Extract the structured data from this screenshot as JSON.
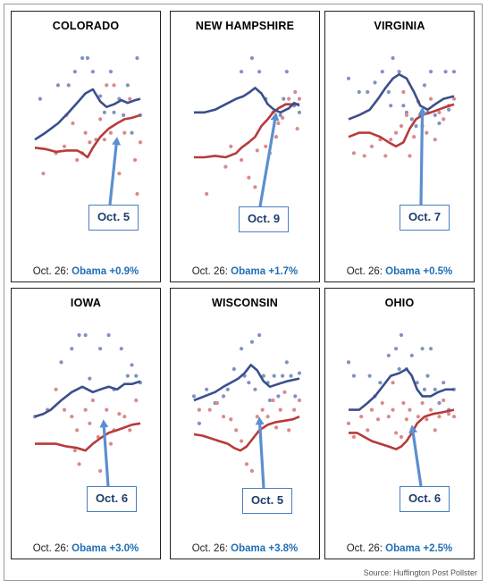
{
  "source": "Source:  Huffington Post Pollster",
  "colors": {
    "obama": "#3b4f8c",
    "romney": "#b83a3a",
    "obama_dot": "#7f93bf",
    "romney_dot": "#d98a8a",
    "arrow": "#5b8fd0",
    "result": "#1f6fb4"
  },
  "chart_data": [
    {
      "type": "scatter",
      "title": "COLORADO",
      "callout": "Oct. 5",
      "footer_prefix": "Oct. 26: ",
      "footer_result": "Obama +0.9%",
      "obama_line": [
        0.0,
        0.6,
        0.1,
        0.55,
        0.22,
        0.48,
        0.32,
        0.4,
        0.4,
        0.33,
        0.48,
        0.26,
        0.55,
        0.23,
        0.62,
        0.32,
        0.68,
        0.36,
        0.75,
        0.34,
        0.82,
        0.31,
        0.88,
        0.33,
        0.95,
        0.31,
        1.0,
        0.3
      ],
      "romney_line": [
        0.0,
        0.66,
        0.1,
        0.67,
        0.2,
        0.69,
        0.3,
        0.68,
        0.4,
        0.68,
        0.45,
        0.7,
        0.5,
        0.73,
        0.55,
        0.66,
        0.62,
        0.58,
        0.7,
        0.52,
        0.78,
        0.48,
        0.85,
        0.45,
        0.92,
        0.44,
        1.0,
        0.42
      ],
      "obama_dots": [
        0.05,
        0.3,
        0.22,
        0.2,
        0.32,
        0.2,
        0.38,
        0.1,
        0.45,
        0.0,
        0.5,
        0.0,
        0.55,
        0.1,
        0.62,
        0.28,
        0.66,
        0.4,
        0.72,
        0.1,
        0.75,
        0.4,
        0.8,
        0.3,
        0.84,
        0.42,
        0.88,
        0.2,
        0.92,
        0.55,
        0.97,
        0.0,
        1.0,
        0.42
      ],
      "romney_dots": [
        0.08,
        0.85,
        0.2,
        0.7,
        0.28,
        0.65,
        0.3,
        0.42,
        0.36,
        0.48,
        0.4,
        0.75,
        0.45,
        0.7,
        0.48,
        0.55,
        0.52,
        0.62,
        0.58,
        0.6,
        0.62,
        0.45,
        0.66,
        0.6,
        0.68,
        0.2,
        0.72,
        0.55,
        0.75,
        0.2,
        0.8,
        0.85,
        0.85,
        0.55,
        0.9,
        0.3,
        0.95,
        0.75,
        0.97,
        1.0,
        1.0,
        0.62
      ]
    },
    {
      "type": "scatter",
      "title": "NEW HAMPSHIRE",
      "callout": "Oct. 9",
      "footer_prefix": "Oct. 26: ",
      "footer_result": "Obama +1.7%",
      "obama_line": [
        0.0,
        0.4,
        0.1,
        0.4,
        0.2,
        0.38,
        0.3,
        0.34,
        0.4,
        0.3,
        0.47,
        0.28,
        0.53,
        0.25,
        0.58,
        0.22,
        0.64,
        0.26,
        0.7,
        0.34,
        0.76,
        0.38,
        0.82,
        0.4,
        0.9,
        0.37,
        0.95,
        0.33,
        1.0,
        0.35
      ],
      "romney_line": [
        0.0,
        0.73,
        0.1,
        0.73,
        0.2,
        0.72,
        0.3,
        0.73,
        0.4,
        0.7,
        0.45,
        0.66,
        0.52,
        0.62,
        0.58,
        0.58,
        0.64,
        0.5,
        0.7,
        0.45,
        0.75,
        0.4,
        0.8,
        0.37,
        0.87,
        0.34,
        1.0,
        0.34
      ],
      "obama_dots": [
        0.45,
        0.1,
        0.55,
        0.0,
        0.62,
        0.1,
        0.68,
        0.3,
        0.75,
        0.4,
        0.82,
        0.42,
        0.85,
        0.3,
        0.88,
        0.1,
        0.95,
        0.35,
        1.0,
        0.4
      ],
      "romney_dots": [
        0.3,
        0.8,
        0.35,
        0.65,
        0.45,
        0.75,
        0.52,
        0.88,
        0.58,
        0.95,
        0.6,
        0.68,
        0.68,
        0.65,
        0.72,
        0.7,
        0.78,
        0.58,
        0.8,
        0.48,
        0.84,
        0.44,
        0.9,
        0.3,
        0.96,
        0.25,
        0.98,
        0.52,
        1.0,
        0.3,
        0.12,
        1.0
      ]
    },
    {
      "type": "scatter",
      "title": "VIRGINIA",
      "callout": "Oct. 7",
      "footer_prefix": "Oct. 26: ",
      "footer_result": "Obama +0.5%",
      "obama_line": [
        0.0,
        0.45,
        0.1,
        0.42,
        0.2,
        0.38,
        0.28,
        0.3,
        0.35,
        0.22,
        0.42,
        0.15,
        0.48,
        0.12,
        0.55,
        0.15,
        0.62,
        0.25,
        0.68,
        0.35,
        0.75,
        0.38,
        0.82,
        0.34,
        0.9,
        0.3,
        1.0,
        0.28
      ],
      "romney_line": [
        0.0,
        0.58,
        0.1,
        0.55,
        0.2,
        0.55,
        0.3,
        0.58,
        0.38,
        0.62,
        0.45,
        0.65,
        0.52,
        0.62,
        0.58,
        0.52,
        0.64,
        0.45,
        0.7,
        0.42,
        0.78,
        0.4,
        0.85,
        0.38,
        0.92,
        0.36,
        1.0,
        0.34
      ],
      "obama_dots": [
        0.0,
        0.15,
        0.1,
        0.25,
        0.18,
        0.25,
        0.25,
        0.18,
        0.32,
        0.1,
        0.38,
        0.25,
        0.4,
        0.35,
        0.42,
        0.0,
        0.48,
        0.1,
        0.52,
        0.35,
        0.55,
        0.4,
        0.6,
        0.45,
        0.64,
        0.5,
        0.68,
        0.42,
        0.72,
        0.2,
        0.75,
        0.4,
        0.78,
        0.1,
        0.82,
        0.42,
        0.86,
        0.48,
        0.92,
        0.1,
        0.95,
        0.38,
        1.0,
        0.1
      ],
      "romney_dots": [
        0.05,
        0.7,
        0.15,
        0.72,
        0.22,
        0.65,
        0.3,
        0.6,
        0.35,
        0.72,
        0.4,
        0.6,
        0.45,
        0.55,
        0.5,
        0.5,
        0.55,
        0.42,
        0.58,
        0.72,
        0.62,
        0.58,
        0.66,
        0.32,
        0.7,
        0.5,
        0.74,
        0.55,
        0.78,
        0.3,
        0.82,
        0.6,
        0.86,
        0.4,
        0.9,
        0.45,
        0.95,
        0.35,
        1.0,
        0.3,
        0.52,
        0.25
      ]
    },
    {
      "type": "scatter",
      "title": "IOWA",
      "callout": "Oct. 6",
      "footer_prefix": "Oct. 26: ",
      "footer_result": "Obama +3.0%",
      "obama_line": [
        0.0,
        0.6,
        0.08,
        0.58,
        0.15,
        0.55,
        0.25,
        0.48,
        0.35,
        0.42,
        0.45,
        0.38,
        0.5,
        0.4,
        0.55,
        0.42,
        0.62,
        0.4,
        0.7,
        0.38,
        0.78,
        0.4,
        0.85,
        0.36,
        0.92,
        0.36,
        1.0,
        0.34
      ],
      "romney_line": [
        0.0,
        0.8,
        0.1,
        0.8,
        0.2,
        0.8,
        0.3,
        0.82,
        0.4,
        0.83,
        0.48,
        0.85,
        0.55,
        0.8,
        0.62,
        0.76,
        0.7,
        0.72,
        0.78,
        0.7,
        0.85,
        0.68,
        0.92,
        0.66,
        1.0,
        0.65
      ],
      "obama_dots": [
        0.0,
        0.6,
        0.12,
        0.55,
        0.25,
        0.2,
        0.35,
        0.1,
        0.42,
        0.0,
        0.48,
        0.0,
        0.52,
        0.32,
        0.62,
        0.1,
        0.7,
        0.0,
        0.75,
        0.4,
        0.82,
        0.1,
        0.88,
        0.3,
        0.92,
        0.22,
        0.96,
        0.3,
        1.0,
        0.35
      ],
      "romney_dots": [
        0.2,
        0.4,
        0.28,
        0.55,
        0.35,
        0.6,
        0.4,
        0.7,
        0.42,
        0.95,
        0.48,
        0.55,
        0.52,
        0.65,
        0.55,
        0.48,
        0.6,
        0.75,
        0.62,
        1.0,
        0.68,
        0.55,
        0.72,
        0.8,
        0.75,
        0.7,
        0.8,
        0.58,
        0.85,
        0.6,
        0.9,
        0.7,
        0.96,
        0.48,
        0.38,
        0.85
      ]
    },
    {
      "type": "scatter",
      "title": "WISCONSIN",
      "callout": "Oct. 5",
      "footer_prefix": "Oct. 26: ",
      "footer_result": "Obama +3.8%",
      "obama_line": [
        0.0,
        0.48,
        0.1,
        0.45,
        0.2,
        0.42,
        0.28,
        0.38,
        0.35,
        0.35,
        0.42,
        0.32,
        0.48,
        0.28,
        0.54,
        0.22,
        0.6,
        0.26,
        0.66,
        0.34,
        0.72,
        0.38,
        0.8,
        0.36,
        0.88,
        0.34,
        1.0,
        0.32
      ],
      "romney_line": [
        0.0,
        0.73,
        0.08,
        0.74,
        0.16,
        0.76,
        0.24,
        0.78,
        0.32,
        0.8,
        0.38,
        0.83,
        0.44,
        0.85,
        0.5,
        0.82,
        0.56,
        0.76,
        0.62,
        0.7,
        0.7,
        0.66,
        0.78,
        0.64,
        0.86,
        0.63,
        0.94,
        0.62,
        1.0,
        0.6
      ],
      "obama_dots": [
        0.0,
        0.45,
        0.05,
        0.65,
        0.12,
        0.4,
        0.2,
        0.5,
        0.28,
        0.45,
        0.32,
        0.4,
        0.38,
        0.25,
        0.45,
        0.1,
        0.48,
        0.3,
        0.52,
        0.35,
        0.55,
        0.05,
        0.58,
        0.4,
        0.62,
        0.0,
        0.66,
        0.3,
        0.7,
        0.35,
        0.72,
        0.48,
        0.76,
        0.3,
        0.8,
        0.45,
        0.84,
        0.3,
        0.88,
        0.2,
        0.92,
        0.3,
        0.96,
        0.45,
        1.0,
        0.28
      ],
      "romney_dots": [
        0.05,
        0.55,
        0.15,
        0.55,
        0.22,
        0.5,
        0.28,
        0.6,
        0.35,
        0.62,
        0.4,
        0.7,
        0.45,
        0.78,
        0.5,
        0.95,
        0.55,
        1.0,
        0.6,
        0.6,
        0.65,
        0.55,
        0.7,
        0.6,
        0.75,
        0.48,
        0.78,
        0.68,
        0.82,
        0.55,
        0.86,
        0.42,
        0.9,
        0.7,
        0.95,
        0.55,
        1.0,
        0.48
      ]
    },
    {
      "type": "scatter",
      "title": "OHIO",
      "callout": "Oct. 6",
      "footer_prefix": "Oct. 26: ",
      "footer_result": "Obama +2.5%",
      "obama_line": [
        0.0,
        0.55,
        0.1,
        0.55,
        0.18,
        0.5,
        0.25,
        0.45,
        0.32,
        0.38,
        0.4,
        0.3,
        0.48,
        0.28,
        0.55,
        0.25,
        0.6,
        0.3,
        0.65,
        0.4,
        0.7,
        0.45,
        0.78,
        0.45,
        0.85,
        0.42,
        0.92,
        0.4,
        1.0,
        0.4
      ],
      "romney_line": [
        0.0,
        0.72,
        0.08,
        0.72,
        0.15,
        0.75,
        0.22,
        0.78,
        0.3,
        0.8,
        0.38,
        0.82,
        0.45,
        0.84,
        0.5,
        0.82,
        0.55,
        0.78,
        0.6,
        0.72,
        0.65,
        0.65,
        0.72,
        0.6,
        0.8,
        0.58,
        0.88,
        0.57,
        1.0,
        0.55
      ],
      "obama_dots": [
        0.0,
        0.2,
        0.05,
        0.3,
        0.2,
        0.3,
        0.25,
        0.45,
        0.3,
        0.35,
        0.38,
        0.15,
        0.45,
        0.1,
        0.48,
        0.25,
        0.5,
        0.0,
        0.55,
        0.25,
        0.6,
        0.15,
        0.65,
        0.35,
        0.7,
        0.1,
        0.72,
        0.4,
        0.75,
        0.3,
        0.78,
        0.1,
        0.82,
        0.4,
        0.86,
        0.5,
        0.9,
        0.35,
        0.95,
        0.55,
        1.0,
        0.4
      ],
      "romney_dots": [
        0.0,
        0.65,
        0.05,
        0.75,
        0.12,
        0.6,
        0.18,
        0.7,
        0.22,
        0.55,
        0.28,
        0.62,
        0.32,
        0.5,
        0.38,
        0.6,
        0.42,
        0.55,
        0.45,
        0.72,
        0.5,
        0.75,
        0.52,
        0.5,
        0.55,
        0.62,
        0.58,
        0.55,
        0.62,
        0.7,
        0.66,
        0.6,
        0.7,
        0.5,
        0.74,
        0.62,
        0.78,
        0.55,
        0.82,
        0.7,
        0.86,
        0.6,
        0.9,
        0.48,
        0.95,
        0.58,
        1.0,
        0.6,
        0.42,
        0.35
      ]
    }
  ]
}
